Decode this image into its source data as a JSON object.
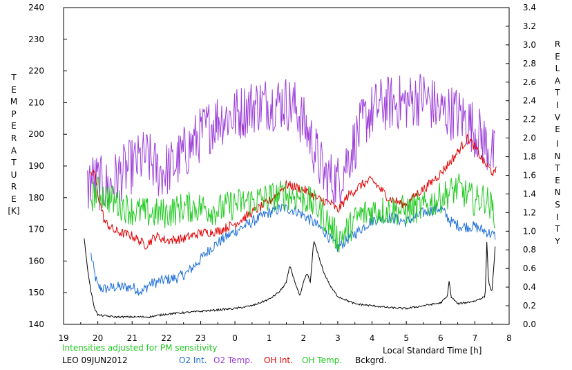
{
  "chart_data": {
    "type": "line",
    "left_axis": {
      "label_letters": [
        "T",
        "E",
        "M",
        "P",
        "E",
        "R",
        "A",
        "T",
        "U",
        "R",
        "E"
      ],
      "unit": "[K]",
      "min": 140,
      "max": 240,
      "ticks": [
        "140",
        "150",
        "160",
        "170",
        "180",
        "190",
        "200",
        "210",
        "220",
        "230",
        "240"
      ]
    },
    "right_axis": {
      "label_letters_1": [
        "R",
        "E",
        "L",
        "A",
        "T",
        "I",
        "V",
        "E"
      ],
      "label_letters_2": [
        "I",
        "N",
        "T",
        "E",
        "N",
        "S",
        "I",
        "T",
        "Y"
      ],
      "min": 0.0,
      "max": 3.4,
      "ticks": [
        "0.0",
        "0.2",
        "0.4",
        "0.6",
        "0.8",
        "1.0",
        "1.2",
        "1.4",
        "1.6",
        "1.8",
        "2.0",
        "2.2",
        "2.4",
        "2.6",
        "2.8",
        "3.0",
        "3.2",
        "3.4"
      ]
    },
    "x_axis": {
      "label": "Local Standard Time [h]",
      "min": 19,
      "max": 32,
      "ticks": [
        "19",
        "20",
        "21",
        "22",
        "23",
        "0",
        "1",
        "2",
        "3",
        "4",
        "5",
        "6",
        "7",
        "8"
      ]
    },
    "note": "Intensities adjusted for PM sensitivity",
    "station": "LEO 09JUN2012",
    "series": [
      {
        "name": "O2 Int.",
        "axis": "right",
        "color": "#1f6fd8",
        "noise": 0.06,
        "points": [
          [
            19.8,
            0.75
          ],
          [
            19.9,
            0.55
          ],
          [
            20.0,
            0.4
          ],
          [
            20.2,
            0.38
          ],
          [
            20.5,
            0.4
          ],
          [
            21.0,
            0.4
          ],
          [
            21.3,
            0.35
          ],
          [
            21.5,
            0.43
          ],
          [
            22.0,
            0.48
          ],
          [
            22.3,
            0.5
          ],
          [
            22.6,
            0.55
          ],
          [
            23.0,
            0.7
          ],
          [
            23.3,
            0.82
          ],
          [
            23.6,
            0.9
          ],
          [
            24.0,
            1.0
          ],
          [
            24.5,
            1.1
          ],
          [
            25.0,
            1.2
          ],
          [
            25.4,
            1.25
          ],
          [
            25.8,
            1.22
          ],
          [
            26.2,
            1.12
          ],
          [
            26.6,
            1.0
          ],
          [
            27.0,
            0.82
          ],
          [
            27.3,
            0.92
          ],
          [
            27.6,
            1.0
          ],
          [
            28.0,
            1.12
          ],
          [
            28.5,
            1.15
          ],
          [
            29.0,
            1.1
          ],
          [
            29.5,
            1.2
          ],
          [
            30.0,
            1.25
          ],
          [
            30.3,
            1.1
          ],
          [
            30.6,
            1.05
          ],
          [
            31.0,
            1.05
          ],
          [
            31.3,
            1.0
          ],
          [
            31.6,
            0.95
          ]
        ]
      },
      {
        "name": "O2 Temp.",
        "axis": "left",
        "color": "#9c3ed8",
        "noise": 9,
        "points": [
          [
            19.7,
            183
          ],
          [
            19.8,
            186
          ],
          [
            20.0,
            185
          ],
          [
            20.3,
            183
          ],
          [
            20.6,
            187
          ],
          [
            21.0,
            190
          ],
          [
            21.4,
            193
          ],
          [
            21.8,
            188
          ],
          [
            22.2,
            190
          ],
          [
            22.6,
            195
          ],
          [
            23.0,
            200
          ],
          [
            23.5,
            205
          ],
          [
            24.0,
            206
          ],
          [
            24.5,
            209
          ],
          [
            25.0,
            210
          ],
          [
            25.5,
            210
          ],
          [
            25.8,
            208
          ],
          [
            26.2,
            199
          ],
          [
            26.6,
            187
          ],
          [
            27.0,
            185
          ],
          [
            27.4,
            195
          ],
          [
            27.8,
            205
          ],
          [
            28.2,
            209
          ],
          [
            28.6,
            210
          ],
          [
            29.0,
            210
          ],
          [
            29.5,
            212
          ],
          [
            30.0,
            207
          ],
          [
            30.4,
            207
          ],
          [
            30.8,
            204
          ],
          [
            31.2,
            199
          ],
          [
            31.5,
            194
          ],
          [
            31.6,
            192
          ]
        ]
      },
      {
        "name": "OH Int.",
        "axis": "right",
        "color": "#e00000",
        "noise": 0.05,
        "points": [
          [
            19.8,
            1.6
          ],
          [
            19.9,
            1.65
          ],
          [
            20.0,
            1.4
          ],
          [
            20.2,
            1.1
          ],
          [
            20.5,
            1.0
          ],
          [
            21.0,
            0.95
          ],
          [
            21.4,
            0.85
          ],
          [
            21.7,
            0.95
          ],
          [
            22.0,
            0.9
          ],
          [
            22.5,
            0.92
          ],
          [
            23.0,
            0.98
          ],
          [
            23.5,
            1.0
          ],
          [
            24.0,
            1.08
          ],
          [
            24.5,
            1.2
          ],
          [
            25.0,
            1.32
          ],
          [
            25.5,
            1.5
          ],
          [
            26.0,
            1.45
          ],
          [
            26.4,
            1.35
          ],
          [
            26.8,
            1.3
          ],
          [
            27.0,
            1.22
          ],
          [
            27.3,
            1.38
          ],
          [
            27.7,
            1.5
          ],
          [
            28.0,
            1.55
          ],
          [
            28.5,
            1.35
          ],
          [
            29.0,
            1.28
          ],
          [
            29.3,
            1.4
          ],
          [
            29.6,
            1.48
          ],
          [
            30.0,
            1.62
          ],
          [
            30.4,
            1.8
          ],
          [
            30.8,
            2.0
          ],
          [
            31.0,
            1.9
          ],
          [
            31.3,
            1.72
          ],
          [
            31.6,
            1.6
          ],
          [
            31.65,
            1.75
          ]
        ]
      },
      {
        "name": "OH Temp.",
        "axis": "left",
        "color": "#22c922",
        "noise": 5,
        "points": [
          [
            19.8,
            180
          ],
          [
            20.0,
            182
          ],
          [
            20.3,
            180
          ],
          [
            20.6,
            178
          ],
          [
            21.0,
            176
          ],
          [
            21.5,
            175
          ],
          [
            22.0,
            175
          ],
          [
            22.5,
            177
          ],
          [
            23.0,
            177
          ],
          [
            23.5,
            176
          ],
          [
            24.0,
            178
          ],
          [
            24.5,
            179
          ],
          [
            25.0,
            180
          ],
          [
            25.5,
            181
          ],
          [
            26.0,
            180
          ],
          [
            26.4,
            177
          ],
          [
            26.8,
            171
          ],
          [
            27.0,
            167
          ],
          [
            27.3,
            170
          ],
          [
            27.6,
            174
          ],
          [
            28.0,
            176
          ],
          [
            28.5,
            176
          ],
          [
            29.0,
            176
          ],
          [
            29.5,
            177
          ],
          [
            30.0,
            180
          ],
          [
            30.5,
            183
          ],
          [
            31.0,
            179
          ],
          [
            31.3,
            180
          ],
          [
            31.6,
            175
          ]
        ]
      },
      {
        "name": "Bckgrd.",
        "axis": "right",
        "color": "#000000",
        "noise": 0.01,
        "points": [
          [
            19.6,
            0.92
          ],
          [
            19.7,
            0.6
          ],
          [
            19.8,
            0.35
          ],
          [
            19.9,
            0.18
          ],
          [
            20.0,
            0.1
          ],
          [
            20.5,
            0.08
          ],
          [
            21.0,
            0.08
          ],
          [
            21.5,
            0.08
          ],
          [
            22.0,
            0.11
          ],
          [
            23.0,
            0.14
          ],
          [
            24.0,
            0.17
          ],
          [
            24.5,
            0.2
          ],
          [
            25.0,
            0.27
          ],
          [
            25.3,
            0.35
          ],
          [
            25.5,
            0.45
          ],
          [
            25.6,
            0.63
          ],
          [
            25.8,
            0.4
          ],
          [
            25.9,
            0.3
          ],
          [
            26.0,
            0.45
          ],
          [
            26.1,
            0.55
          ],
          [
            26.2,
            0.45
          ],
          [
            26.3,
            0.9
          ],
          [
            26.4,
            0.78
          ],
          [
            26.6,
            0.55
          ],
          [
            26.8,
            0.4
          ],
          [
            27.0,
            0.3
          ],
          [
            27.5,
            0.22
          ],
          [
            28.0,
            0.2
          ],
          [
            28.5,
            0.18
          ],
          [
            29.0,
            0.17
          ],
          [
            29.5,
            0.2
          ],
          [
            30.0,
            0.23
          ],
          [
            30.2,
            0.3
          ],
          [
            30.25,
            0.48
          ],
          [
            30.3,
            0.3
          ],
          [
            30.5,
            0.22
          ],
          [
            31.0,
            0.25
          ],
          [
            31.3,
            0.3
          ],
          [
            31.35,
            0.9
          ],
          [
            31.4,
            0.45
          ],
          [
            31.5,
            0.35
          ],
          [
            31.6,
            0.88
          ]
        ]
      }
    ]
  }
}
